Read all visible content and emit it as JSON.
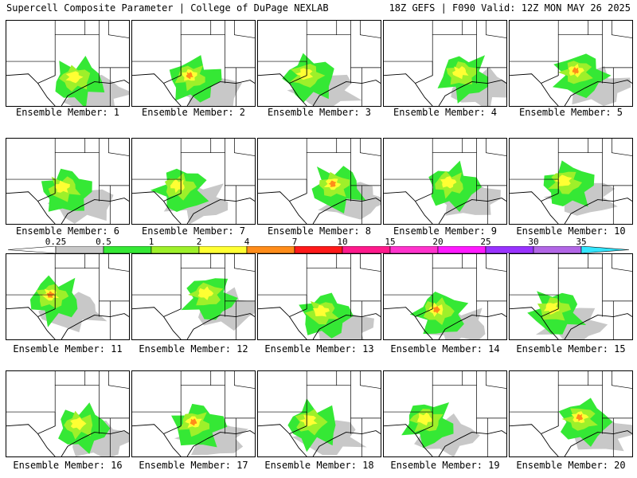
{
  "header": {
    "left_title": "Supercell Composite Parameter | College of DuPage NEXLAB",
    "right_title": "18Z GEFS | F090 Valid: 12Z MON MAY 26 2025"
  },
  "colorbar": {
    "labels": [
      "0.25",
      "0.5",
      "1",
      "2",
      "4",
      "7",
      "10",
      "15",
      "20",
      "25",
      "30",
      "35"
    ],
    "colors": [
      "#ffffff",
      "#c8c8c8",
      "#35e835",
      "#9ef02a",
      "#ffff33",
      "#ff8c1a",
      "#ff1a1a",
      "#ff1a8c",
      "#ff33cc",
      "#ff1aff",
      "#9933ff",
      "#b266e6",
      "#33e6ff"
    ]
  },
  "members": [
    {
      "label": "Ensemble Member: 1"
    },
    {
      "label": "Ensemble Member: 2"
    },
    {
      "label": "Ensemble Member: 3"
    },
    {
      "label": "Ensemble Member: 4"
    },
    {
      "label": "Ensemble Member: 5"
    },
    {
      "label": "Ensemble Member: 6"
    },
    {
      "label": "Ensemble Member: 7"
    },
    {
      "label": "Ensemble Member: 8"
    },
    {
      "label": "Ensemble Member: 9"
    },
    {
      "label": "Ensemble Member: 10"
    },
    {
      "label": "Ensemble Member: 11"
    },
    {
      "label": "Ensemble Member: 12"
    },
    {
      "label": "Ensemble Member: 13"
    },
    {
      "label": "Ensemble Member: 14"
    },
    {
      "label": "Ensemble Member: 15"
    },
    {
      "label": "Ensemble Member: 16"
    },
    {
      "label": "Ensemble Member: 17"
    },
    {
      "label": "Ensemble Member: 18"
    },
    {
      "label": "Ensemble Member: 19"
    },
    {
      "label": "Ensemble Member: 20"
    }
  ]
}
